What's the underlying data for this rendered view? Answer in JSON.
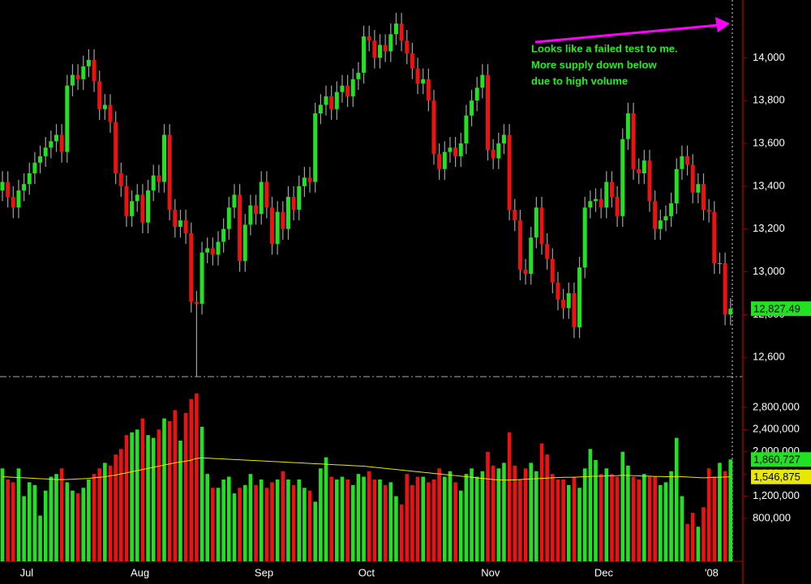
{
  "chart_data": [
    {
      "type": "candlestick",
      "annotation": [
        "Looks like a failed test to me.",
        "More supply down below",
        "due to high volume"
      ],
      "up_color": "#22e022",
      "down_color": "#ee1111",
      "wick_color": "#a0a0a0",
      "ylim": [
        12510,
        14270
      ],
      "yticks": [
        {
          "value": 12600,
          "label": "12,600"
        },
        {
          "value": 12800,
          "label": "12,800"
        },
        {
          "value": 13000,
          "label": "13,000"
        },
        {
          "value": 13200,
          "label": "13,200"
        },
        {
          "value": 13400,
          "label": "13,400"
        },
        {
          "value": 13600,
          "label": "13,600"
        },
        {
          "value": 13800,
          "label": "13,800"
        },
        {
          "value": 14000,
          "label": "14,000"
        }
      ],
      "last_price": {
        "value": 12827.49,
        "label": "12,827.49"
      },
      "open": [
        13380,
        13420,
        13350,
        13300,
        13380,
        13410,
        13460,
        13510,
        13540,
        13580,
        13610,
        13640,
        13560,
        13870,
        13920,
        13900,
        13960,
        13990,
        13890,
        13760,
        13780,
        13700,
        13460,
        13400,
        13260,
        13330,
        13360,
        13230,
        13380,
        13450,
        13420,
        13640,
        13290,
        13210,
        13240,
        13180,
        12860,
        12850,
        13090,
        13110,
        13080,
        13140,
        13200,
        13300,
        13360,
        13050,
        13220,
        13310,
        13270,
        13420,
        13300,
        13130,
        13280,
        13200,
        13350,
        13290,
        13400,
        13440,
        13420,
        13740,
        13780,
        13820,
        13760,
        13840,
        13870,
        13820,
        13900,
        13930,
        14100,
        14080,
        14000,
        14060,
        14030,
        14110,
        14160,
        14080,
        14020,
        13950,
        13880,
        13900,
        13800,
        13550,
        13480,
        13560,
        13580,
        13540,
        13600,
        13730,
        13800,
        13860,
        13920,
        13570,
        13530,
        13600,
        13640,
        13290,
        13240,
        13010,
        12990,
        13160,
        13300,
        13130,
        13060,
        12950,
        12870,
        12830,
        12900,
        12740,
        13020,
        13300,
        13330,
        13340,
        13300,
        13420,
        13350,
        13260,
        13620,
        13740,
        13480,
        13460,
        13520,
        13330,
        13200,
        13240,
        13260,
        13320,
        13480,
        13540,
        13500,
        13370,
        13410,
        13290,
        13280,
        13040,
        13040,
        12800
      ],
      "high": [
        13470,
        13470,
        13400,
        13430,
        13460,
        13510,
        13560,
        13590,
        13630,
        13660,
        13690,
        13690,
        13920,
        13970,
        13970,
        14010,
        14040,
        14040,
        13940,
        13830,
        13830,
        13750,
        13510,
        13450,
        13380,
        13410,
        13410,
        13430,
        13500,
        13500,
        13690,
        13690,
        13340,
        13290,
        13290,
        13230,
        12910,
        13140,
        13160,
        13160,
        13190,
        13250,
        13350,
        13410,
        13410,
        13270,
        13360,
        13360,
        13470,
        13470,
        13350,
        13330,
        13330,
        13400,
        13400,
        13450,
        13490,
        13490,
        13790,
        13830,
        13870,
        13870,
        13890,
        13920,
        13920,
        13950,
        13980,
        14150,
        14150,
        14130,
        14110,
        14110,
        14160,
        14210,
        14210,
        14130,
        14070,
        14000,
        13950,
        13950,
        13850,
        13600,
        13610,
        13630,
        13630,
        13650,
        13780,
        13850,
        13910,
        13970,
        13970,
        13620,
        13650,
        13690,
        13690,
        13340,
        13290,
        13060,
        13210,
        13350,
        13350,
        13180,
        13110,
        13000,
        12920,
        12950,
        12950,
        13070,
        13350,
        13380,
        13390,
        13390,
        13470,
        13470,
        13400,
        13670,
        13790,
        13790,
        13530,
        13570,
        13570,
        13380,
        13290,
        13310,
        13370,
        13530,
        13590,
        13590,
        13550,
        13460,
        13460,
        13340,
        13330,
        13090,
        13090,
        12877
      ],
      "low": [
        13330,
        13300,
        13250,
        13250,
        13330,
        13360,
        13410,
        13460,
        13490,
        13530,
        13560,
        13510,
        13510,
        13820,
        13850,
        13850,
        13910,
        13840,
        13710,
        13710,
        13650,
        13410,
        13350,
        13210,
        13210,
        13280,
        13180,
        13180,
        13330,
        13370,
        13370,
        13240,
        13160,
        13160,
        13130,
        12810,
        12510,
        12800,
        13040,
        13030,
        13030,
        13090,
        13150,
        13250,
        13000,
        13000,
        13170,
        13220,
        13220,
        13250,
        13080,
        13080,
        13150,
        13150,
        13240,
        13240,
        13350,
        13370,
        13370,
        13690,
        13730,
        13710,
        13710,
        13790,
        13770,
        13770,
        13850,
        13880,
        14030,
        13950,
        13950,
        13980,
        13980,
        14060,
        14030,
        13970,
        13900,
        13830,
        13830,
        13750,
        13500,
        13430,
        13430,
        13510,
        13490,
        13490,
        13550,
        13680,
        13750,
        13810,
        13520,
        13480,
        13480,
        13550,
        13240,
        13190,
        12960,
        12940,
        12940,
        13110,
        13080,
        13010,
        12900,
        12820,
        12780,
        12780,
        12690,
        12690,
        12970,
        13250,
        13280,
        13250,
        13250,
        13300,
        13210,
        13210,
        13570,
        13430,
        13410,
        13410,
        13280,
        13150,
        13150,
        13190,
        13210,
        13270,
        13430,
        13450,
        13320,
        13320,
        13240,
        13230,
        12990,
        12990,
        12750,
        12750
      ],
      "close": [
        13420,
        13350,
        13300,
        13380,
        13410,
        13460,
        13510,
        13540,
        13580,
        13610,
        13640,
        13560,
        13870,
        13920,
        13900,
        13960,
        13990,
        13890,
        13760,
        13780,
        13700,
        13460,
        13400,
        13260,
        13330,
        13360,
        13230,
        13380,
        13450,
        13420,
        13640,
        13290,
        13210,
        13240,
        13180,
        12860,
        12850,
        13090,
        13110,
        13080,
        13140,
        13200,
        13300,
        13360,
        13050,
        13220,
        13310,
        13270,
        13420,
        13300,
        13130,
        13280,
        13200,
        13350,
        13290,
        13400,
        13440,
        13420,
        13740,
        13780,
        13820,
        13760,
        13840,
        13870,
        13820,
        13900,
        13930,
        14100,
        14080,
        14000,
        14060,
        14030,
        14110,
        14160,
        14080,
        14020,
        13950,
        13880,
        13900,
        13800,
        13550,
        13480,
        13560,
        13580,
        13540,
        13600,
        13730,
        13800,
        13860,
        13920,
        13570,
        13530,
        13600,
        13640,
        13290,
        13240,
        13010,
        12990,
        13160,
        13300,
        13130,
        13060,
        12950,
        12870,
        12830,
        12900,
        12740,
        13020,
        13300,
        13330,
        13340,
        13300,
        13420,
        13350,
        13260,
        13620,
        13740,
        13480,
        13460,
        13520,
        13330,
        13200,
        13240,
        13260,
        13320,
        13480,
        13540,
        13500,
        13370,
        13410,
        13290,
        13280,
        13040,
        13040,
        12800,
        12827.49
      ]
    },
    {
      "type": "bar",
      "categories": [
        null,
        null,
        null,
        null,
        null,
        null,
        "Jul",
        null,
        null,
        null,
        null,
        null,
        null,
        null,
        null,
        null,
        null,
        null,
        null,
        null,
        null,
        null,
        null,
        null,
        null,
        null,
        null,
        "Aug",
        null,
        null,
        null,
        null,
        null,
        null,
        null,
        null,
        null,
        null,
        null,
        null,
        null,
        null,
        null,
        null,
        null,
        null,
        null,
        null,
        null,
        null,
        "Sep",
        null,
        null,
        null,
        null,
        null,
        null,
        null,
        null,
        null,
        null,
        null,
        null,
        null,
        null,
        null,
        null,
        null,
        null,
        "Oct",
        null,
        null,
        null,
        null,
        null,
        null,
        null,
        null,
        null,
        null,
        null,
        null,
        null,
        null,
        null,
        null,
        null,
        null,
        null,
        null,
        null,
        null,
        "Nov",
        null,
        null,
        null,
        null,
        null,
        null,
        null,
        null,
        null,
        null,
        null,
        null,
        null,
        null,
        null,
        null,
        null,
        null,
        null,
        null,
        "Dec",
        null,
        null,
        null,
        null,
        null,
        null,
        null,
        null,
        null,
        null,
        null,
        null,
        null,
        null,
        null,
        null,
        null,
        null,
        null,
        "'08",
        null,
        null
      ],
      "values": [
        1700000,
        1500000,
        1450000,
        1700000,
        1200000,
        1450000,
        1400000,
        850000,
        1300000,
        1550000,
        1600000,
        1700000,
        1450000,
        1300000,
        1250000,
        1350000,
        1500000,
        1600000,
        1700000,
        1800000,
        1750000,
        1950000,
        2050000,
        2300000,
        2350000,
        2400000,
        2600000,
        2300000,
        2250000,
        2400000,
        2600000,
        2550000,
        2750000,
        2200000,
        2700000,
        2950000,
        3050000,
        2450000,
        1600000,
        1350000,
        1350000,
        1500000,
        1550000,
        1250000,
        1350000,
        1400000,
        1600000,
        1400000,
        1500000,
        1350000,
        1450000,
        1500000,
        1650000,
        1500000,
        1400000,
        1500000,
        1350000,
        1300000,
        1100000,
        1700000,
        1900000,
        1550000,
        1500000,
        1550000,
        1500000,
        1400000,
        1600000,
        1550000,
        1650000,
        1500000,
        1500000,
        1400000,
        1450000,
        1200000,
        1050000,
        1600000,
        1400000,
        1550000,
        1550000,
        1450000,
        1500000,
        1700000,
        1550000,
        1650000,
        1450000,
        1300000,
        1600000,
        1700000,
        1550000,
        1650000,
        2000000,
        1750000,
        1700000,
        1800000,
        2350000,
        1750000,
        1500000,
        1700000,
        1800000,
        1650000,
        2150000,
        1950000,
        1600000,
        1500000,
        1500000,
        1400000,
        1550000,
        1350000,
        1700000,
        2050000,
        1850000,
        1600000,
        1700000,
        1600000,
        1550000,
        2000000,
        1750000,
        1550000,
        1500000,
        1600000,
        1550000,
        1550000,
        1400000,
        1450000,
        1650000,
        2250000,
        1200000,
        700000,
        900000,
        650000,
        1000000,
        1700000,
        1550000,
        1800000,
        1650000,
        1860727
      ],
      "moving_average": {
        "color": "#e8e800",
        "values": [
          1550000,
          1545000,
          1540000,
          1535000,
          1530000,
          1525000,
          1520000,
          1515000,
          1510000,
          1505000,
          1500000,
          1500000,
          1500000,
          1505000,
          1510000,
          1515000,
          1520000,
          1530000,
          1540000,
          1550000,
          1565000,
          1580000,
          1600000,
          1620000,
          1640000,
          1660000,
          1680000,
          1700000,
          1720000,
          1740000,
          1760000,
          1780000,
          1800000,
          1815000,
          1830000,
          1850000,
          1880000,
          1890000,
          1885000,
          1880000,
          1875000,
          1870000,
          1865000,
          1860000,
          1855000,
          1850000,
          1845000,
          1840000,
          1835000,
          1830000,
          1825000,
          1820000,
          1815000,
          1810000,
          1805000,
          1800000,
          1795000,
          1790000,
          1785000,
          1780000,
          1775000,
          1770000,
          1765000,
          1760000,
          1755000,
          1750000,
          1745000,
          1740000,
          1730000,
          1720000,
          1710000,
          1700000,
          1690000,
          1680000,
          1670000,
          1660000,
          1650000,
          1640000,
          1630000,
          1620000,
          1610000,
          1600000,
          1590000,
          1580000,
          1570000,
          1560000,
          1550000,
          1540000,
          1530000,
          1520000,
          1510000,
          1500000,
          1495000,
          1490000,
          1490000,
          1495000,
          1500000,
          1505000,
          1510000,
          1515000,
          1520000,
          1525000,
          1530000,
          1535000,
          1540000,
          1540000,
          1540000,
          1545000,
          1550000,
          1555000,
          1560000,
          1560000,
          1565000,
          1565000,
          1570000,
          1575000,
          1575000,
          1570000,
          1565000,
          1560000,
          1560000,
          1555000,
          1555000,
          1550000,
          1550000,
          1555000,
          1550000,
          1545000,
          1540000,
          1535000,
          1530000,
          1535000,
          1540000,
          1540000,
          1545000,
          1546875
        ]
      },
      "ylim": [
        26000,
        3280000
      ],
      "yticks": [
        {
          "value": 800000,
          "label": "800,000"
        },
        {
          "value": 1200000,
          "label": "1,200,000"
        },
        {
          "value": 1600000,
          "label": "1,600,000"
        },
        {
          "value": 2000000,
          "label": "2,000,000"
        },
        {
          "value": 2400000,
          "label": "2,400,000"
        },
        {
          "value": 2800000,
          "label": "2,800,000"
        }
      ],
      "last_volume": {
        "value": 1860727,
        "label": "1,860,727"
      },
      "last_average": {
        "value": 1546875,
        "label": "1,546,875"
      }
    }
  ]
}
